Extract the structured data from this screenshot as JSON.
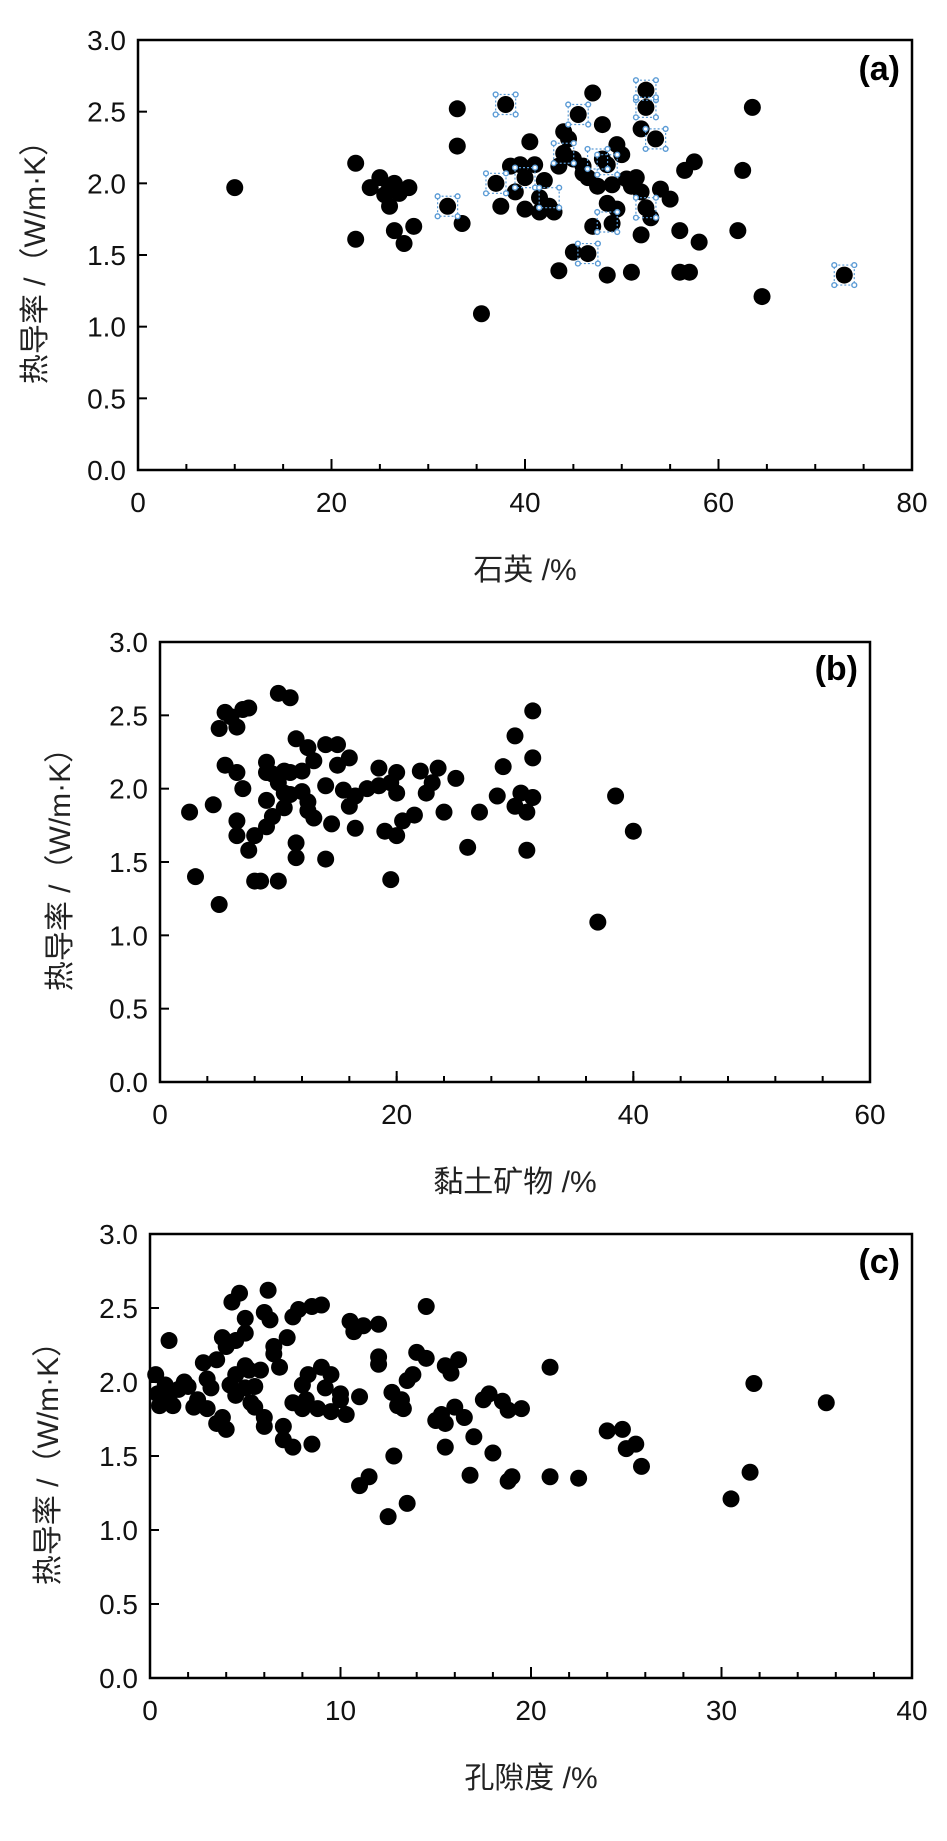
{
  "chart_data": [
    {
      "type": "scatter",
      "panel_label": "(a)",
      "xlabel": "石英 /%",
      "ylabel": "热导率 /（W/m·K）",
      "xlim": [
        0,
        80
      ],
      "ylim": [
        0,
        3.0
      ],
      "xticks": [
        "0",
        "20",
        "40",
        "60",
        "80"
      ],
      "yticks": [
        "0.0",
        "0.5",
        "1.0",
        "1.5",
        "2.0",
        "2.5",
        "3.0"
      ],
      "x_minor_step": 5,
      "grid": false,
      "marker_color": "#000000",
      "selection_color": "#5b9bd5",
      "points": [
        [
          10.0,
          1.97
        ],
        [
          22.5,
          2.14
        ],
        [
          22.5,
          1.61
        ],
        [
          24.0,
          1.97
        ],
        [
          25.0,
          2.04
        ],
        [
          25.5,
          1.92
        ],
        [
          26.0,
          1.97
        ],
        [
          26.0,
          1.84
        ],
        [
          26.5,
          1.67
        ],
        [
          26.5,
          2.0
        ],
        [
          27.0,
          1.93
        ],
        [
          27.5,
          1.58
        ],
        [
          28.0,
          1.97
        ],
        [
          28.5,
          1.7
        ],
        [
          32.0,
          1.84
        ],
        [
          33.0,
          2.52
        ],
        [
          33.0,
          2.26
        ],
        [
          33.5,
          1.72
        ],
        [
          35.5,
          1.09
        ],
        [
          37.0,
          2.0
        ],
        [
          37.5,
          1.84
        ],
        [
          38.0,
          2.55
        ],
        [
          38.5,
          2.12
        ],
        [
          39.0,
          1.94
        ],
        [
          39.5,
          2.13
        ],
        [
          40.0,
          2.04
        ],
        [
          40.0,
          1.82
        ],
        [
          40.5,
          2.29
        ],
        [
          41.0,
          2.13
        ],
        [
          41.5,
          1.8
        ],
        [
          41.5,
          1.9
        ],
        [
          42.0,
          2.02
        ],
        [
          42.5,
          1.84
        ],
        [
          43.0,
          1.8
        ],
        [
          43.5,
          2.12
        ],
        [
          43.5,
          1.39
        ],
        [
          44.0,
          2.36
        ],
        [
          44.0,
          2.21
        ],
        [
          44.5,
          2.31
        ],
        [
          45.0,
          2.17
        ],
        [
          45.0,
          1.52
        ],
        [
          45.5,
          2.48
        ],
        [
          46.0,
          2.12
        ],
        [
          46.0,
          2.07
        ],
        [
          46.5,
          1.51
        ],
        [
          46.5,
          2.04
        ],
        [
          47.0,
          2.63
        ],
        [
          47.0,
          1.7
        ],
        [
          47.5,
          1.98
        ],
        [
          48.0,
          2.41
        ],
        [
          48.0,
          2.17
        ],
        [
          48.5,
          2.13
        ],
        [
          48.5,
          1.36
        ],
        [
          48.5,
          1.86
        ],
        [
          49.0,
          1.72
        ],
        [
          49.0,
          1.99
        ],
        [
          49.5,
          2.27
        ],
        [
          49.5,
          1.82
        ],
        [
          50.0,
          2.2
        ],
        [
          50.5,
          2.03
        ],
        [
          51.0,
          1.98
        ],
        [
          51.0,
          1.38
        ],
        [
          51.5,
          2.04
        ],
        [
          52.0,
          2.38
        ],
        [
          52.0,
          1.64
        ],
        [
          52.0,
          1.94
        ],
        [
          52.5,
          2.65
        ],
        [
          52.5,
          2.53
        ],
        [
          52.5,
          1.83
        ],
        [
          53.0,
          1.76
        ],
        [
          53.5,
          2.31
        ],
        [
          54.0,
          1.96
        ],
        [
          55.0,
          1.89
        ],
        [
          56.0,
          1.67
        ],
        [
          56.0,
          1.38
        ],
        [
          56.5,
          2.09
        ],
        [
          57.0,
          1.38
        ],
        [
          57.5,
          2.15
        ],
        [
          58.0,
          1.59
        ],
        [
          62.0,
          1.67
        ],
        [
          62.5,
          2.09
        ],
        [
          63.5,
          2.53
        ],
        [
          64.5,
          1.21
        ],
        [
          73.0,
          1.36
        ]
      ],
      "selected_points": [
        [
          32.0,
          1.84
        ],
        [
          37.0,
          2.0
        ],
        [
          38.0,
          2.55
        ],
        [
          40.0,
          2.04
        ],
        [
          42.5,
          1.9
        ],
        [
          44.0,
          2.21
        ],
        [
          45.5,
          2.48
        ],
        [
          46.5,
          1.51
        ],
        [
          47.5,
          2.17
        ],
        [
          48.5,
          2.13
        ],
        [
          48.5,
          1.73
        ],
        [
          52.5,
          2.65
        ],
        [
          52.5,
          2.53
        ],
        [
          52.5,
          1.83
        ],
        [
          53.5,
          2.31
        ],
        [
          73.0,
          1.36
        ]
      ]
    },
    {
      "type": "scatter",
      "panel_label": "(b)",
      "xlabel": "黏土矿物 /%",
      "ylabel": "热导率 /（W/m·K）",
      "xlim": [
        0,
        60
      ],
      "ylim": [
        0,
        3.0
      ],
      "xticks": [
        "0",
        "20",
        "40",
        "60"
      ],
      "yticks": [
        "0.0",
        "0.5",
        "1.0",
        "1.5",
        "2.0",
        "2.5",
        "3.0"
      ],
      "x_minor_step": 4,
      "grid": false,
      "marker_color": "#000000",
      "points": [
        [
          2.5,
          1.84
        ],
        [
          3.0,
          1.4
        ],
        [
          4.5,
          1.89
        ],
        [
          5.0,
          1.21
        ],
        [
          5.0,
          2.41
        ],
        [
          5.5,
          2.52
        ],
        [
          5.5,
          2.16
        ],
        [
          6.0,
          2.49
        ],
        [
          6.5,
          2.11
        ],
        [
          6.5,
          1.78
        ],
        [
          6.5,
          1.68
        ],
        [
          6.5,
          2.42
        ],
        [
          7.0,
          2.54
        ],
        [
          7.0,
          2.0
        ],
        [
          7.5,
          2.55
        ],
        [
          7.5,
          1.58
        ],
        [
          8.0,
          1.68
        ],
        [
          8.0,
          1.37
        ],
        [
          8.5,
          1.37
        ],
        [
          9.0,
          1.92
        ],
        [
          9.0,
          2.18
        ],
        [
          9.0,
          2.11
        ],
        [
          9.0,
          1.74
        ],
        [
          9.5,
          2.1
        ],
        [
          9.5,
          1.81
        ],
        [
          10.0,
          2.65
        ],
        [
          10.0,
          2.04
        ],
        [
          10.0,
          1.37
        ],
        [
          10.5,
          2.12
        ],
        [
          10.5,
          1.97
        ],
        [
          10.5,
          1.87
        ],
        [
          11.0,
          2.62
        ],
        [
          11.0,
          2.11
        ],
        [
          11.0,
          1.96
        ],
        [
          11.5,
          2.34
        ],
        [
          11.5,
          1.63
        ],
        [
          11.5,
          1.53
        ],
        [
          12.0,
          2.12
        ],
        [
          12.0,
          1.98
        ],
        [
          12.5,
          2.28
        ],
        [
          12.5,
          1.91
        ],
        [
          12.5,
          1.85
        ],
        [
          13.0,
          2.19
        ],
        [
          13.0,
          1.8
        ],
        [
          14.0,
          2.3
        ],
        [
          14.0,
          2.02
        ],
        [
          14.0,
          1.52
        ],
        [
          14.5,
          1.76
        ],
        [
          15.0,
          2.3
        ],
        [
          15.0,
          2.16
        ],
        [
          15.5,
          1.99
        ],
        [
          16.0,
          2.21
        ],
        [
          16.0,
          1.88
        ],
        [
          16.5,
          1.95
        ],
        [
          16.5,
          1.73
        ],
        [
          17.5,
          2.0
        ],
        [
          18.5,
          2.14
        ],
        [
          18.5,
          2.02
        ],
        [
          19.0,
          1.71
        ],
        [
          19.5,
          2.04
        ],
        [
          19.5,
          1.38
        ],
        [
          20.0,
          2.11
        ],
        [
          20.0,
          1.97
        ],
        [
          20.0,
          1.68
        ],
        [
          20.5,
          1.78
        ],
        [
          21.5,
          1.82
        ],
        [
          22.0,
          2.12
        ],
        [
          22.5,
          1.97
        ],
        [
          23.0,
          2.04
        ],
        [
          23.5,
          2.14
        ],
        [
          24.0,
          1.84
        ],
        [
          25.0,
          2.07
        ],
        [
          26.0,
          1.6
        ],
        [
          27.0,
          1.84
        ],
        [
          28.5,
          1.95
        ],
        [
          29.0,
          2.15
        ],
        [
          30.0,
          2.36
        ],
        [
          30.0,
          1.88
        ],
        [
          30.5,
          1.97
        ],
        [
          31.0,
          1.84
        ],
        [
          31.0,
          1.58
        ],
        [
          31.5,
          2.53
        ],
        [
          31.5,
          2.21
        ],
        [
          31.5,
          1.94
        ],
        [
          37.0,
          1.09
        ],
        [
          38.5,
          1.95
        ],
        [
          40.0,
          1.71
        ]
      ]
    },
    {
      "type": "scatter",
      "panel_label": "(c)",
      "xlabel": "孔隙度 /%",
      "ylabel": "热导率 /（W/m·K）",
      "xlim": [
        0,
        40
      ],
      "ylim": [
        0,
        3.0
      ],
      "xticks": [
        "0",
        "10",
        "20",
        "30",
        "40"
      ],
      "yticks": [
        "0.0",
        "0.5",
        "1.0",
        "1.5",
        "2.0",
        "2.5",
        "3.0"
      ],
      "x_minor_step": 2,
      "grid": false,
      "marker_color": "#000000",
      "points": [
        [
          0.3,
          2.05
        ],
        [
          0.4,
          1.92
        ],
        [
          0.5,
          1.84
        ],
        [
          0.8,
          1.98
        ],
        [
          1.0,
          1.88
        ],
        [
          1.0,
          2.28
        ],
        [
          1.2,
          1.84
        ],
        [
          1.5,
          1.95
        ],
        [
          1.8,
          2.0
        ],
        [
          2.0,
          1.97
        ],
        [
          2.3,
          1.83
        ],
        [
          2.5,
          1.88
        ],
        [
          2.8,
          2.13
        ],
        [
          3.0,
          2.02
        ],
        [
          3.0,
          1.82
        ],
        [
          3.2,
          1.96
        ],
        [
          3.5,
          1.72
        ],
        [
          3.5,
          2.15
        ],
        [
          3.8,
          2.3
        ],
        [
          3.8,
          1.76
        ],
        [
          4.0,
          2.24
        ],
        [
          4.0,
          1.68
        ],
        [
          4.2,
          1.98
        ],
        [
          4.3,
          2.54
        ],
        [
          4.5,
          2.05
        ],
        [
          4.5,
          2.28
        ],
        [
          4.5,
          1.91
        ],
        [
          4.7,
          2.6
        ],
        [
          5.0,
          2.43
        ],
        [
          5.0,
          2.33
        ],
        [
          5.0,
          2.11
        ],
        [
          5.0,
          1.96
        ],
        [
          5.2,
          2.08
        ],
        [
          5.3,
          1.86
        ],
        [
          5.5,
          1.83
        ],
        [
          5.5,
          1.97
        ],
        [
          5.8,
          2.08
        ],
        [
          6.0,
          2.47
        ],
        [
          6.0,
          1.7
        ],
        [
          6.0,
          1.76
        ],
        [
          6.2,
          2.62
        ],
        [
          6.3,
          2.42
        ],
        [
          6.5,
          2.24
        ],
        [
          6.5,
          2.19
        ],
        [
          6.8,
          2.1
        ],
        [
          7.0,
          1.61
        ],
        [
          7.0,
          1.7
        ],
        [
          7.2,
          2.3
        ],
        [
          7.5,
          2.44
        ],
        [
          7.5,
          1.86
        ],
        [
          7.5,
          1.56
        ],
        [
          7.8,
          2.49
        ],
        [
          8.0,
          1.82
        ],
        [
          8.0,
          1.98
        ],
        [
          8.2,
          1.88
        ],
        [
          8.3,
          2.05
        ],
        [
          8.5,
          2.51
        ],
        [
          8.5,
          1.58
        ],
        [
          8.8,
          1.82
        ],
        [
          9.0,
          2.52
        ],
        [
          9.0,
          2.1
        ],
        [
          9.2,
          1.96
        ],
        [
          9.5,
          2.05
        ],
        [
          9.5,
          1.8
        ],
        [
          10.0,
          1.88
        ],
        [
          10.0,
          1.92
        ],
        [
          10.3,
          1.78
        ],
        [
          10.5,
          2.41
        ],
        [
          10.7,
          2.34
        ],
        [
          11.0,
          1.3
        ],
        [
          11.0,
          1.9
        ],
        [
          11.2,
          2.38
        ],
        [
          11.5,
          1.36
        ],
        [
          12.0,
          2.39
        ],
        [
          12.0,
          2.17
        ],
        [
          12.0,
          2.12
        ],
        [
          12.5,
          1.09
        ],
        [
          12.7,
          1.93
        ],
        [
          12.8,
          1.5
        ],
        [
          13.0,
          1.84
        ],
        [
          13.2,
          1.88
        ],
        [
          13.3,
          1.82
        ],
        [
          13.5,
          1.18
        ],
        [
          13.5,
          2.01
        ],
        [
          13.8,
          2.05
        ],
        [
          14.0,
          2.2
        ],
        [
          14.5,
          2.51
        ],
        [
          14.5,
          2.16
        ],
        [
          15.0,
          1.74
        ],
        [
          15.3,
          1.78
        ],
        [
          15.5,
          1.72
        ],
        [
          15.5,
          1.56
        ],
        [
          15.5,
          2.11
        ],
        [
          15.8,
          2.06
        ],
        [
          16.0,
          1.83
        ],
        [
          16.2,
          2.15
        ],
        [
          16.5,
          1.76
        ],
        [
          16.8,
          1.37
        ],
        [
          17.0,
          1.63
        ],
        [
          17.5,
          1.88
        ],
        [
          17.8,
          1.92
        ],
        [
          18.0,
          1.52
        ],
        [
          18.5,
          1.87
        ],
        [
          18.8,
          1.33
        ],
        [
          18.8,
          1.81
        ],
        [
          19.0,
          1.36
        ],
        [
          19.5,
          1.82
        ],
        [
          21.0,
          1.36
        ],
        [
          21.0,
          2.1
        ],
        [
          22.5,
          1.35
        ],
        [
          24.0,
          1.67
        ],
        [
          24.8,
          1.68
        ],
        [
          25.0,
          1.55
        ],
        [
          25.5,
          1.58
        ],
        [
          25.8,
          1.43
        ],
        [
          30.5,
          1.21
        ],
        [
          31.5,
          1.39
        ],
        [
          31.7,
          1.99
        ],
        [
          35.5,
          1.86
        ]
      ]
    }
  ]
}
